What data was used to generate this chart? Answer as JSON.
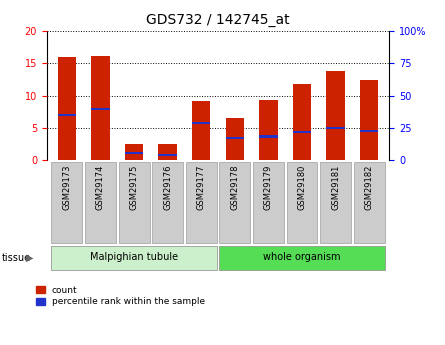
{
  "title": "GDS732 / 142745_at",
  "categories": [
    "GSM29173",
    "GSM29174",
    "GSM29175",
    "GSM29176",
    "GSM29177",
    "GSM29178",
    "GSM29179",
    "GSM29180",
    "GSM29181",
    "GSM29182"
  ],
  "count_values": [
    16.0,
    16.2,
    2.5,
    2.5,
    9.2,
    6.6,
    9.3,
    11.8,
    13.8,
    12.5
  ],
  "percentile_values": [
    7.0,
    8.0,
    1.2,
    0.8,
    5.8,
    3.5,
    3.7,
    4.4,
    5.0,
    4.6
  ],
  "left_ylim": [
    0,
    20
  ],
  "right_ylim": [
    0,
    100
  ],
  "left_yticks": [
    0,
    5,
    10,
    15,
    20
  ],
  "right_yticks": [
    0,
    25,
    50,
    75,
    100
  ],
  "right_yticklabels": [
    "0",
    "25",
    "50",
    "75",
    "100%"
  ],
  "bar_color": "#cc2200",
  "percentile_color": "#2233cc",
  "bar_width": 0.55,
  "blue_bar_height": 0.35,
  "tissue_groups": [
    {
      "label": "Malpighian tubule",
      "start": 0,
      "end": 4,
      "color": "#ccf0cc"
    },
    {
      "label": "whole organism",
      "start": 5,
      "end": 9,
      "color": "#55dd55"
    }
  ],
  "legend_items": [
    {
      "label": "count",
      "color": "#cc2200"
    },
    {
      "label": "percentile rank within the sample",
      "color": "#2233cc"
    }
  ],
  "tissue_label": "tissue",
  "tick_label_bg": "#cccccc",
  "tick_label_edge": "#aaaaaa",
  "grid_linestyle": "dotted",
  "grid_color": "#000000",
  "bg_color": "#ffffff",
  "plot_bg": "#ffffff",
  "title_fontsize": 10,
  "axis_fontsize": 8,
  "tick_fontsize": 7,
  "cat_fontsize": 6
}
